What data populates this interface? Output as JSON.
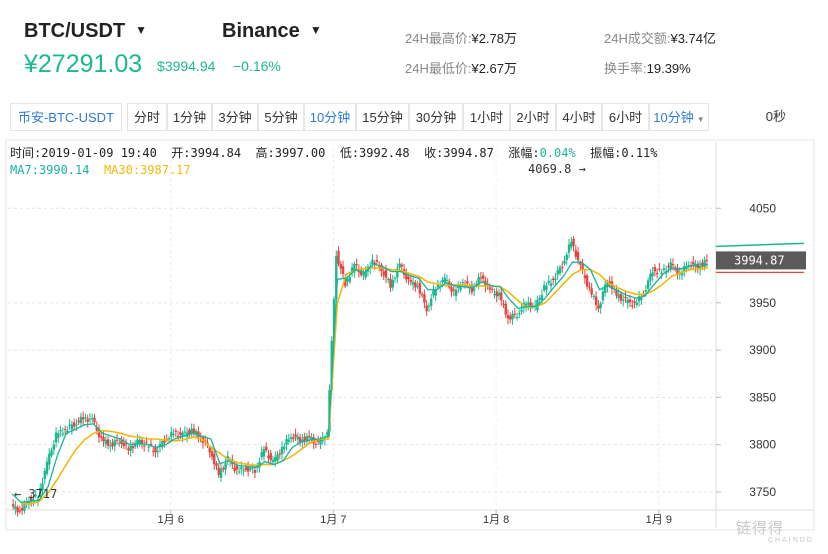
{
  "header": {
    "pair": "BTC/USDT",
    "exchange": "Binance",
    "price_cny": "¥27291.03",
    "price_usd": "$3994.94",
    "change_pct": "−0.16%",
    "stats": [
      {
        "label": "24H最高价:",
        "value": "¥2.78万"
      },
      {
        "label": "24H成交额:",
        "value": "¥3.74亿"
      },
      {
        "label": "24H最低价:",
        "value": "¥2.67万"
      },
      {
        "label": "换手率:",
        "value": "19.39%"
      }
    ]
  },
  "toolbar": {
    "symbol": "币安-BTC-USDT",
    "intervals": [
      "分时",
      "1分钟",
      "3分钟",
      "5分钟",
      "10分钟",
      "15分钟",
      "30分钟",
      "1小时",
      "2小时",
      "4小时",
      "6小时"
    ],
    "active_interval": "10分钟",
    "dropdown_value": "10分钟",
    "countdown": "0秒"
  },
  "info": {
    "time": "时间:2019-01-09 19:40",
    "open": "开:3994.84",
    "high": "高:3997.00",
    "low": "低:3992.48",
    "close": "收:3994.87",
    "change_label": "涨幅:",
    "change_value": "0.04%",
    "amplitude": "振幅:0.11%",
    "ma7": "MA7:3990.14",
    "ma30": "MA30:3987.17"
  },
  "chart_data": {
    "type": "line",
    "title": "",
    "x_ticks": [
      "1月 6",
      "1月 7",
      "1月 8",
      "1月 9"
    ],
    "y_ticks": [
      3750,
      3800,
      3850,
      3900,
      3950,
      4050
    ],
    "ylim": [
      3733,
      4082
    ],
    "current_price_label": "3994.87",
    "max_label": "4069.8",
    "min_label": "3717",
    "grid": true,
    "colors": {
      "up": "#1cb890",
      "down": "#e2463f",
      "ma7": "#17b39e",
      "ma30": "#f0b90b"
    },
    "series": [
      {
        "name": "MA7",
        "values": [
          3748,
          3739,
          3740,
          3741,
          3756,
          3788,
          3812,
          3816,
          3821,
          3822,
          3812,
          3809,
          3806,
          3800,
          3801,
          3800,
          3797,
          3800,
          3806,
          3809,
          3812,
          3809,
          3806,
          3780,
          3783,
          3778,
          3777,
          3776,
          3782,
          3779,
          3783,
          3797,
          3803,
          3805,
          3806,
          3809,
          3975,
          3976,
          3985,
          3982,
          3991,
          3988,
          3983,
          3983,
          3979,
          3976,
          3964,
          3964,
          3971,
          3968,
          3967,
          3966,
          3972,
          3968,
          3967,
          3954,
          3944,
          3946,
          3946,
          3955,
          3967,
          3978,
          3993,
          3993,
          3985,
          3964,
          3968,
          3963,
          3958,
          3955,
          3957,
          3969,
          3980,
          3987,
          3986,
          3989,
          3991,
          3990
        ]
      },
      {
        "name": "MA30",
        "values": [
          null,
          3738,
          3737,
          3740,
          3749,
          3763,
          3779,
          3794,
          3805,
          3812,
          3815,
          3814,
          3812,
          3809,
          3808,
          3806,
          3806,
          3805,
          3804,
          3805,
          3808,
          3806,
          3797,
          3791,
          3784,
          3781,
          3779,
          3778,
          3779,
          3779,
          3783,
          3788,
          3795,
          3802,
          3806,
          3806,
          3950,
          3980,
          3984,
          3986,
          3987,
          3987,
          3985,
          3984,
          3981,
          3978,
          3972,
          3970,
          3968,
          3969,
          3969,
          3967,
          3968,
          3968,
          3967,
          3961,
          3952,
          3945,
          3946,
          3950,
          3960,
          3970,
          3980,
          3985,
          3985,
          3980,
          3971,
          3966,
          3962,
          3959,
          3959,
          3963,
          3970,
          3978,
          3982,
          3985,
          3986,
          3987
        ]
      },
      {
        "name": "Close",
        "values": [
          3735,
          3730,
          3742,
          3744,
          3780,
          3810,
          3816,
          3822,
          3828,
          3826,
          3805,
          3800,
          3805,
          3795,
          3803,
          3800,
          3793,
          3805,
          3812,
          3810,
          3815,
          3808,
          3795,
          3768,
          3785,
          3772,
          3775,
          3773,
          3795,
          3781,
          3796,
          3810,
          3805,
          3807,
          3800,
          3812,
          4002,
          3970,
          3990,
          3978,
          3995,
          3986,
          3968,
          3990,
          3972,
          3968,
          3944,
          3966,
          3975,
          3960,
          3972,
          3964,
          3978,
          3962,
          3958,
          3934,
          3938,
          3950,
          3945,
          3966,
          3975,
          3990,
          4015,
          3988,
          3964,
          3945,
          3975,
          3958,
          3952,
          3948,
          3960,
          3985,
          3982,
          3990,
          3980,
          3992,
          3988,
          3994
        ]
      }
    ]
  },
  "watermark": "链得得",
  "watermark_sub": "CHAINDD"
}
